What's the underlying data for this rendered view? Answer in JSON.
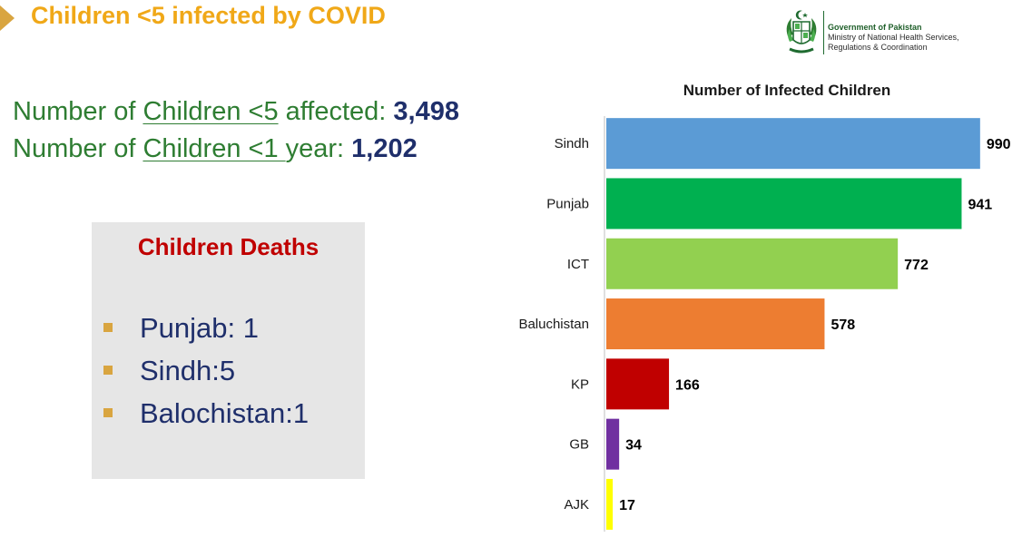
{
  "slide": {
    "title": "Children <5 infected by COVID"
  },
  "logo": {
    "line1": "Government of Pakistan",
    "line2": "Ministry of National Health Services,",
    "line3": "Regulations & Coordination"
  },
  "stats": {
    "line1_prefix": "Number of ",
    "line1_underlined": "Children <5",
    "line1_suffix": " affected: ",
    "line1_value": "3,498",
    "line2_prefix": "Number of ",
    "line2_underlined": "Children <1 ",
    "line2_suffix": "year: ",
    "line2_value": "1,202"
  },
  "deaths": {
    "title": "Children Deaths",
    "items": [
      "Punjab: 1",
      "Sindh:5",
      "Balochistan:1"
    ],
    "bullet_color": "#d9a540"
  },
  "chart_data": {
    "type": "bar",
    "orientation": "horizontal",
    "title": "Number of Infected Children",
    "categories": [
      "Sindh",
      "Punjab",
      "ICT",
      "Baluchistan",
      "KP",
      "GB",
      "AJK"
    ],
    "values": [
      990,
      941,
      772,
      578,
      166,
      34,
      17
    ],
    "colors": [
      "#5b9bd5",
      "#00b050",
      "#92d050",
      "#ed7d31",
      "#c00000",
      "#7030a0",
      "#ffff00"
    ],
    "xlim": [
      0,
      1000
    ],
    "xlabel": "",
    "ylabel": "",
    "data_labels": true,
    "grid": false,
    "legend": "none"
  }
}
